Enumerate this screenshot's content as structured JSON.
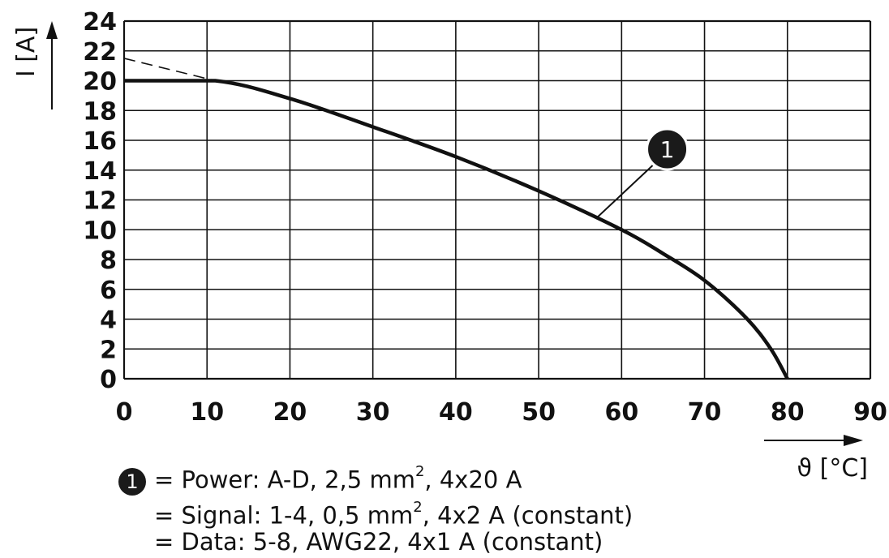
{
  "chart_data": {
    "type": "line",
    "xlabel": "ϑ [°C]",
    "ylabel": "I [A]",
    "xlim": [
      0,
      90
    ],
    "ylim": [
      0,
      24
    ],
    "xticks": [
      0,
      10,
      20,
      30,
      40,
      50,
      60,
      70,
      80,
      90
    ],
    "yticks": [
      0,
      2,
      4,
      6,
      8,
      10,
      12,
      14,
      16,
      18,
      20,
      22,
      24
    ],
    "grid": true,
    "series": [
      {
        "style": "solid-thick",
        "x": [
          0,
          11,
          20,
          30,
          40,
          50,
          60,
          65,
          70,
          75,
          78,
          80
        ],
        "y": [
          20,
          20,
          18.8,
          16.9,
          14.9,
          12.6,
          10.0,
          8.4,
          6.6,
          4.1,
          2.0,
          0
        ]
      },
      {
        "style": "dashed",
        "x": [
          0,
          11
        ],
        "y": [
          21.5,
          20
        ]
      }
    ],
    "annotations": [
      {
        "label": "1",
        "target": [
          57,
          10.8
        ]
      }
    ]
  },
  "legend": {
    "marker": "1",
    "lines": [
      {
        "pre": "= Power: A-D, 2,5 mm",
        "sup": "2",
        "post": ", 4x20 A"
      },
      {
        "pre": "= Signal: 1-4, 0,5 mm",
        "sup": "2",
        "post": ", 4x2 A (constant)"
      },
      {
        "pre": "= Data: 5-8, AWG22, 4x1 A (constant)",
        "sup": "",
        "post": ""
      }
    ]
  }
}
